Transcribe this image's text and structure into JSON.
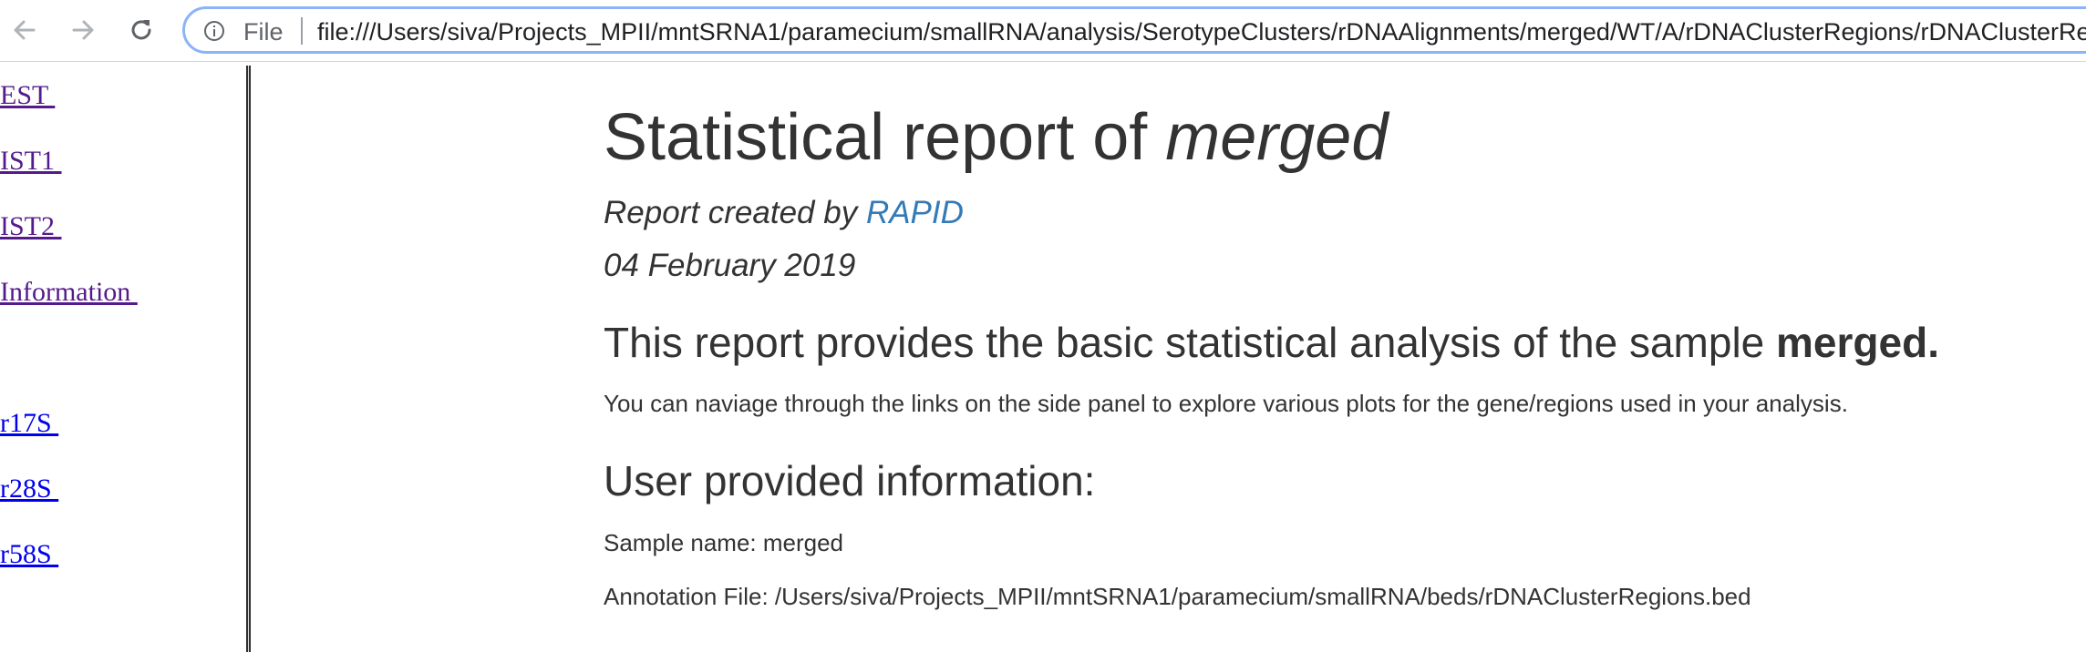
{
  "browser": {
    "back_icon": "arrow-left-icon",
    "forward_icon": "arrow-right-icon",
    "reload_icon": "reload-icon",
    "info_icon": "info-circle-icon",
    "scheme_label": "File",
    "url": "file:///Users/siva/Projects_MPII/mntSRNA1/paramecium/smallRNA/analysis/SerotypeClusters/rDNAAlignments/merged/WT/A/rDNAClusterRegions/rDNAClusterRegions.html"
  },
  "sidebar": {
    "items": [
      {
        "label": "EST ",
        "visited": true
      },
      {
        "label": "IST1 ",
        "visited": true
      },
      {
        "label": "IST2 ",
        "visited": true
      },
      {
        "label": "Information ",
        "visited": true
      },
      {
        "label": "r17S ",
        "visited": false
      },
      {
        "label": "r28S ",
        "visited": false
      },
      {
        "label": "r58S ",
        "visited": false
      }
    ]
  },
  "report": {
    "title_prefix": "Statistical report of ",
    "title_sample": "merged",
    "created_by_prefix": "Report created by ",
    "created_by_link": "RAPID",
    "date": "04 February 2019",
    "intro_heading_prefix": "This report provides the basic statistical analysis of the sample ",
    "intro_heading_sample": "merged.",
    "intro_text": "You can naviage through the links on the side panel to explore various plots for the gene/regions used in your analysis.",
    "user_info_heading": "User provided information:",
    "sample_name_line": "Sample name: merged",
    "annotation_file_line": "Annotation File: /Users/siva/Projects_MPII/mntSRNA1/paramecium/smallRNA/beds/rDNAClusterRegions.bed"
  },
  "colors": {
    "link_visited": "#551a8b",
    "link_unvisited": "#0000ee",
    "rapid_link": "#337ab7",
    "text": "#333333",
    "address_focus": "#8ab4f8"
  }
}
